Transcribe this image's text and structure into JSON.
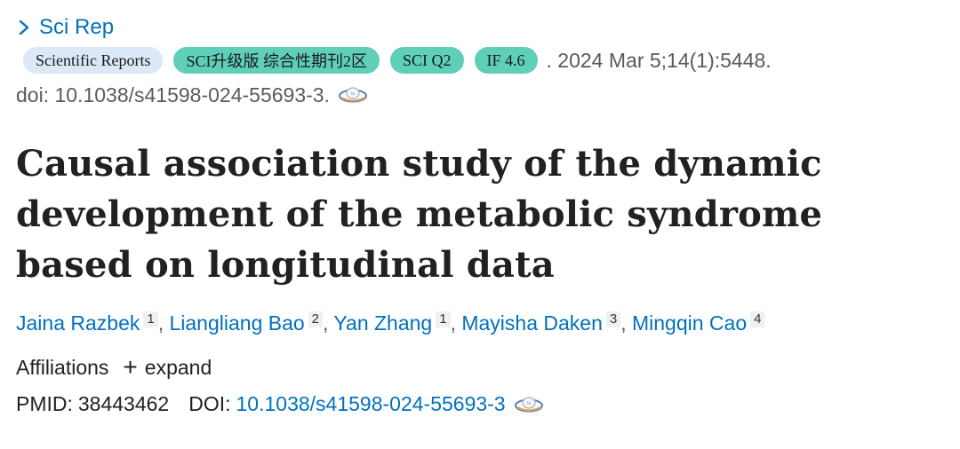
{
  "journal": {
    "short_name": "Sci Rep"
  },
  "badges": [
    {
      "label": "Scientific Reports",
      "color": "#dbe9f7"
    },
    {
      "label": "SCI升级版 综合性期刊2区",
      "color": "#5fcfb9"
    },
    {
      "label": "SCI Q2",
      "color": "#5fcfb9"
    },
    {
      "label": "IF 4.6",
      "color": "#5fcfb9"
    }
  ],
  "citation": {
    "date_text": ". 2024 Mar 5;14(1):5448.",
    "doi_text": "doi: 10.1038/s41598-024-55693-3."
  },
  "article": {
    "title": "Causal association study of the dynamic development of the metabolic syndrome based on longitudinal data"
  },
  "authors": [
    {
      "name": "Jaina Razbek",
      "aff": "1",
      "sep": ", "
    },
    {
      "name": "Liangliang Bao",
      "aff": "2",
      "sep": ", "
    },
    {
      "name": "Yan Zhang",
      "aff": "1",
      "sep": ", "
    },
    {
      "name": "Mayisha Daken",
      "aff": "3",
      "sep": ", "
    },
    {
      "name": "Mingqin Cao",
      "aff": "4",
      "sep": ""
    }
  ],
  "affiliations": {
    "label": "Affiliations",
    "expand_label": "expand"
  },
  "ids": {
    "pmid_label": "PMID:",
    "pmid": "38443462",
    "doi_label": "DOI:",
    "doi": "10.1038/s41598-024-55693-3"
  },
  "colors": {
    "link": "#0071bc",
    "badge_blue": "#dbe9f7",
    "badge_green": "#5fcfb9"
  },
  "icons": {
    "journal_chevron": "chevron-right-icon",
    "external_link": "orbit-link-icon"
  }
}
